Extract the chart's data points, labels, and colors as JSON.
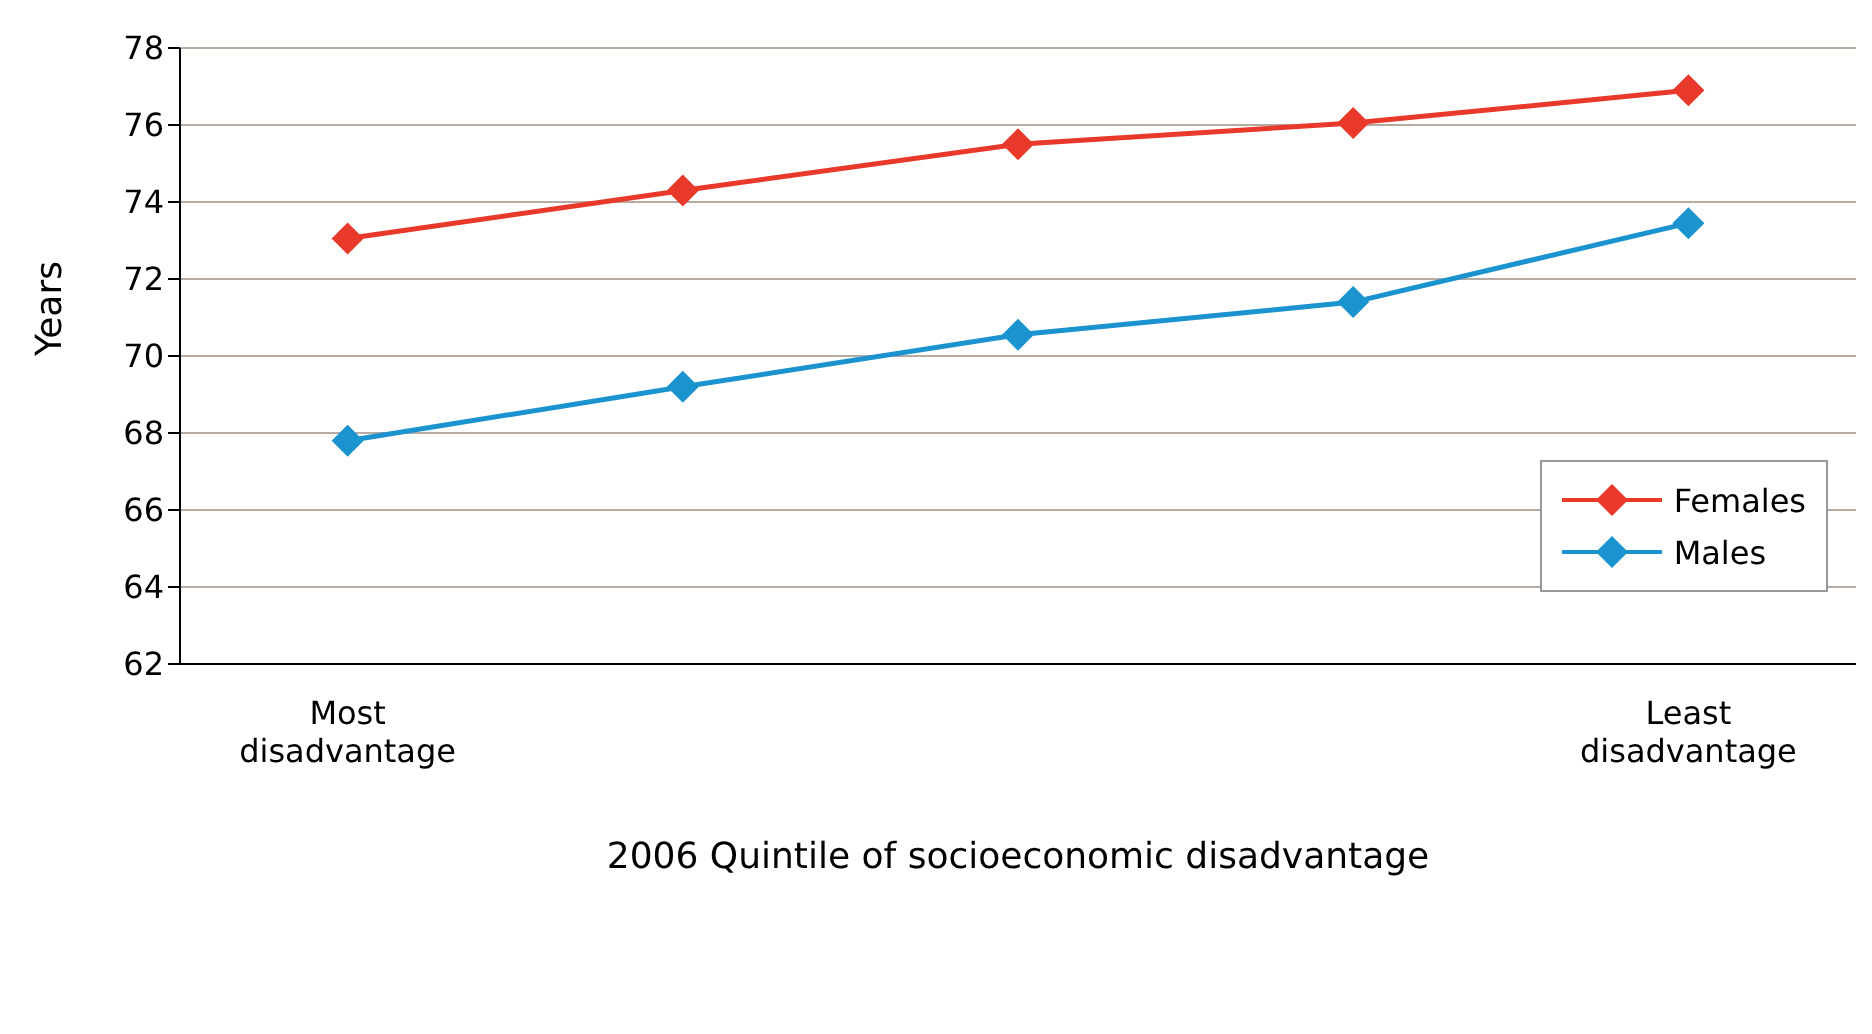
{
  "chart_data": {
    "type": "line",
    "xlabel": "2006 Quintile of socioeconomic disadvantage",
    "ylabel": "Years",
    "categories": [
      "Most disadvantage",
      null,
      null,
      null,
      "Least disadvantage"
    ],
    "series": [
      {
        "name": "Females",
        "color": "#e8392a",
        "values": [
          73.05,
          74.3,
          75.5,
          76.05,
          76.9
        ]
      },
      {
        "name": "Males",
        "color": "#1a93cf",
        "values": [
          67.8,
          69.2,
          70.55,
          71.4,
          73.45
        ]
      }
    ],
    "ylim": [
      62,
      78
    ],
    "yticks": [
      62,
      64,
      66,
      68,
      70,
      72,
      74,
      76,
      78
    ],
    "grid": "y",
    "legend": "right",
    "marker": "diamond",
    "line_style": "solid"
  }
}
